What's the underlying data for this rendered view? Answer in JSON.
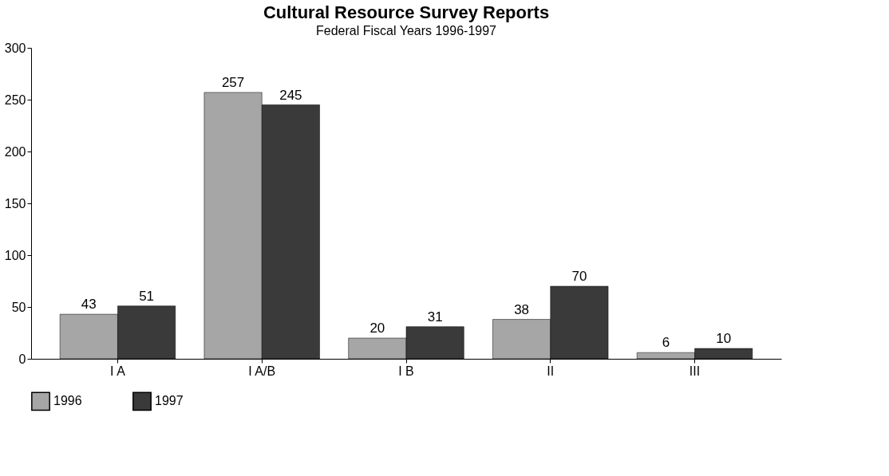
{
  "chart_data": {
    "type": "bar",
    "title": "Cultural Resource Survey Reports",
    "subtitle": "Federal Fiscal Years 1996-1997",
    "categories": [
      "I A",
      "I A/B",
      "I B",
      "II",
      "III"
    ],
    "series": [
      {
        "name": "1996",
        "color": "#a6a6a6",
        "values": [
          43,
          257,
          20,
          38,
          6
        ]
      },
      {
        "name": "1997",
        "color": "#3a3a3a",
        "values": [
          51,
          245,
          31,
          70,
          10
        ]
      }
    ],
    "ylim": [
      0,
      300
    ],
    "yticks": [
      0,
      50,
      100,
      150,
      200,
      250,
      300
    ],
    "grid": false,
    "legend": "bottom",
    "data_labels": true
  }
}
